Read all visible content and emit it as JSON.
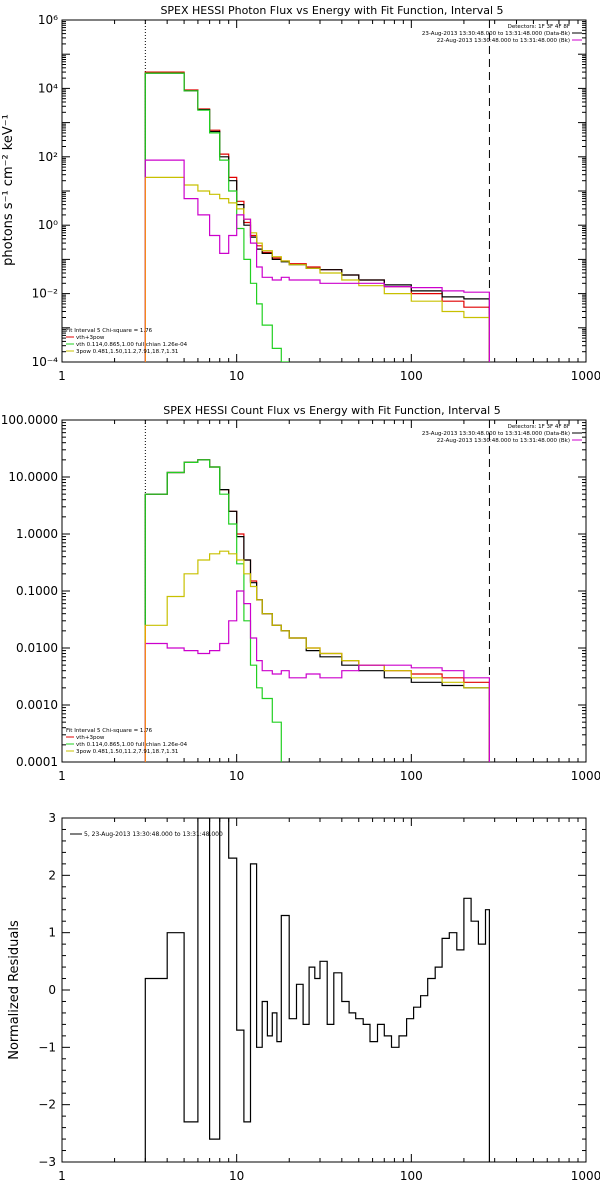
{
  "colors": {
    "black": "#000000",
    "red": "#e00000",
    "green": "#22d022",
    "yellow": "#c8c000",
    "magenta": "#cc00cc",
    "orange": "#ff9900"
  },
  "panels": [
    {
      "id": "photon",
      "title": "SPEX HESSI Photon Flux vs Energy with Fit Function, Interval 5",
      "ylabel": "photons s⁻¹ cm⁻² keV⁻¹",
      "ytick_labels": [
        "10⁻⁴",
        "10⁻²",
        "10⁰",
        "10²",
        "10⁴",
        "10⁶"
      ],
      "xtick_labels": [
        "1",
        "10",
        "100",
        "1000"
      ],
      "legend_right": [
        "Detectors: 1F 3F 4F 8F",
        "23-Aug-2013 13:30:48.000 to 13:31:48.000 (Data-Bk)",
        "22-Aug-2013 13:30:48.000 to 13:31:48.000 (Bk)"
      ],
      "legend_left": [
        "Fit Interval 5   Chi-square = 1.76",
        "vth+3pow",
        "vth 0.114,0.865,1.00  full chian 1.26e-04",
        "3pow 0.481,1.50,11.2,7.91,18.7,1.31"
      ]
    },
    {
      "id": "count",
      "title": "SPEX HESSI Count Flux vs Energy with Fit Function, Interval 5",
      "ylabel": "",
      "ytick_labels": [
        "0.0001",
        "0.0010",
        "0.0100",
        "0.1000",
        "1.0000",
        "10.0000",
        "100.0000"
      ],
      "xtick_labels": [
        "1",
        "10",
        "100",
        "1000"
      ],
      "legend_right": [
        "Detectors: 1F 3F 4F 8F",
        "23-Aug-2013 13:30:48.000 to 13:31:48.000 (Data-Bk)",
        "22-Aug-2013 13:30:48.000 to 13:31:48.000 (Bk)"
      ],
      "legend_left": [
        "Fit Interval 5   Chi-square = 1.76",
        "vth+3pow",
        "vth 0.114,0.865,1.00  full chian 1.26e-04",
        "3pow 0.481,1.50,11.2,7.91,18.7,1.31"
      ]
    },
    {
      "id": "resid",
      "title": "",
      "ylabel": "Normalized Residuals",
      "ytick_labels": [
        "−3",
        "−2",
        "−1",
        "0",
        "1",
        "2",
        "3"
      ],
      "xtick_labels": [
        "1",
        "10",
        "100",
        "1000"
      ],
      "legend_right": [],
      "legend_left": [
        "5, 23-Aug-2013 13:30:48.000 to 13:31:48.000"
      ]
    }
  ],
  "chart_data": [
    {
      "type": "line",
      "title": "SPEX HESSI Photon Flux vs Energy with Fit Function, Interval 5",
      "xlabel": "",
      "ylabel": "photons s⁻¹ cm⁻² keV⁻¹",
      "xscale": "log",
      "yscale": "log",
      "xlim": [
        1,
        1000
      ],
      "ylim": [
        0.0001,
        1000000
      ],
      "grid": false,
      "vlines": [
        {
          "x": 3,
          "style": "dotted"
        },
        {
          "x": 280,
          "style": "dashed"
        }
      ],
      "series": [
        {
          "name": "vth+3pow",
          "color": "red",
          "step": true,
          "x": [
            3,
            4,
            5,
            6,
            7,
            8,
            9,
            10,
            11,
            12,
            13,
            14,
            16,
            18,
            20,
            25,
            30,
            40,
            50,
            70,
            100,
            150,
            200,
            280
          ],
          "y": [
            30000,
            30000,
            9000,
            2500,
            600,
            120,
            25,
            5,
            1.2,
            0.5,
            0.25,
            0.16,
            0.11,
            0.09,
            0.075,
            0.06,
            0.05,
            0.035,
            0.025,
            0.016,
            0.01,
            0.006,
            0.004,
            0.002
          ]
        },
        {
          "name": "Data-Bk",
          "color": "black",
          "step": true,
          "x": [
            3,
            4,
            5,
            6,
            7,
            8,
            9,
            10,
            11,
            12,
            13,
            14,
            16,
            18,
            20,
            25,
            30,
            40,
            50,
            70,
            100,
            150,
            200,
            280
          ],
          "y": [
            28000,
            28000,
            8500,
            2400,
            550,
            100,
            20,
            4,
            1.0,
            0.45,
            0.2,
            0.15,
            0.1,
            0.085,
            0.07,
            0.055,
            0.05,
            0.035,
            0.025,
            0.018,
            0.012,
            0.008,
            0.007,
            0.006
          ]
        },
        {
          "name": "vth",
          "color": "green",
          "step": true,
          "x": [
            3,
            4,
            5,
            6,
            7,
            8,
            9,
            10,
            11,
            12,
            13,
            14,
            16,
            18,
            20
          ],
          "y": [
            28000,
            28000,
            8500,
            2300,
            500,
            80,
            10,
            0.8,
            0.1,
            0.02,
            0.005,
            0.0012,
            0.00025,
            0.0001,
            0.0001
          ]
        },
        {
          "name": "3pow",
          "color": "yellow",
          "step": true,
          "x": [
            3,
            4,
            5,
            6,
            7,
            8,
            9,
            10,
            11,
            12,
            13,
            14,
            16,
            18,
            20,
            25,
            30,
            40,
            50,
            70,
            100,
            150,
            200,
            280
          ],
          "y": [
            25,
            25,
            15,
            10,
            8,
            6,
            4.5,
            3,
            1.5,
            0.6,
            0.3,
            0.18,
            0.12,
            0.09,
            0.07,
            0.055,
            0.04,
            0.025,
            0.017,
            0.01,
            0.006,
            0.003,
            0.002,
            0.001
          ]
        },
        {
          "name": "Bk",
          "color": "magenta",
          "step": true,
          "x": [
            3,
            4,
            5,
            6,
            7,
            8,
            9,
            10,
            11,
            12,
            13,
            14,
            16,
            18,
            20,
            25,
            30,
            40,
            50,
            70,
            100,
            150,
            200,
            280
          ],
          "y": [
            80,
            80,
            6,
            2,
            0.5,
            0.15,
            0.5,
            2,
            1.5,
            0.3,
            0.06,
            0.03,
            0.025,
            0.03,
            0.025,
            0.025,
            0.02,
            0.02,
            0.02,
            0.016,
            0.015,
            0.012,
            0.011,
            0.01
          ]
        }
      ],
      "legend": [
        "Detectors: 1F 3F 4F 8F",
        "23-Aug-2013 13:30:48.000 to 13:31:48.000 (Data-Bk)",
        "22-Aug-2013 13:30:48.000 to 13:31:48.000 (Bk)"
      ]
    },
    {
      "type": "line",
      "title": "SPEX HESSI Count Flux vs Energy with Fit Function, Interval 5",
      "xlabel": "",
      "ylabel": "",
      "xscale": "log",
      "yscale": "log",
      "xlim": [
        1,
        1000
      ],
      "ylim": [
        0.0001,
        100
      ],
      "grid": false,
      "vlines": [
        {
          "x": 3,
          "style": "dotted"
        },
        {
          "x": 280,
          "style": "dashed"
        }
      ],
      "series": [
        {
          "name": "vth+3pow",
          "color": "red",
          "step": true,
          "x": [
            3,
            4,
            5,
            6,
            7,
            8,
            9,
            10,
            11,
            12,
            13,
            14,
            16,
            18,
            20,
            25,
            30,
            40,
            50,
            70,
            100,
            150,
            200,
            280
          ],
          "y": [
            5,
            12,
            18,
            20,
            15,
            6,
            2.5,
            1,
            0.35,
            0.15,
            0.07,
            0.04,
            0.025,
            0.02,
            0.015,
            0.01,
            0.008,
            0.006,
            0.005,
            0.004,
            0.0035,
            0.003,
            0.0025,
            0.002
          ]
        },
        {
          "name": "Data-Bk",
          "color": "black",
          "step": true,
          "x": [
            3,
            4,
            5,
            6,
            7,
            8,
            9,
            10,
            11,
            12,
            13,
            14,
            16,
            18,
            20,
            25,
            30,
            40,
            50,
            70,
            100,
            150,
            200,
            280
          ],
          "y": [
            5,
            12,
            18,
            20,
            15,
            6,
            2.5,
            0.9,
            0.35,
            0.14,
            0.07,
            0.04,
            0.025,
            0.02,
            0.015,
            0.009,
            0.007,
            0.005,
            0.004,
            0.003,
            0.0025,
            0.0022,
            0.002,
            0.0018
          ]
        },
        {
          "name": "vth",
          "color": "green",
          "step": true,
          "x": [
            3,
            4,
            5,
            6,
            7,
            8,
            9,
            10,
            11,
            12,
            13,
            14,
            16,
            18
          ],
          "y": [
            5,
            12,
            18,
            20,
            15,
            5,
            1.5,
            0.3,
            0.03,
            0.005,
            0.002,
            0.0013,
            0.0005,
            0.0001
          ]
        },
        {
          "name": "3pow",
          "color": "yellow",
          "step": true,
          "x": [
            3,
            4,
            5,
            6,
            7,
            8,
            9,
            10,
            11,
            12,
            13,
            14,
            16,
            18,
            20,
            25,
            30,
            40,
            50,
            70,
            100,
            150,
            200,
            280
          ],
          "y": [
            0.025,
            0.08,
            0.2,
            0.35,
            0.45,
            0.5,
            0.45,
            0.35,
            0.2,
            0.12,
            0.07,
            0.04,
            0.025,
            0.02,
            0.015,
            0.01,
            0.008,
            0.006,
            0.005,
            0.004,
            0.003,
            0.0025,
            0.002,
            0.0012
          ]
        },
        {
          "name": "Bk",
          "color": "magenta",
          "step": true,
          "x": [
            3,
            4,
            5,
            6,
            7,
            8,
            9,
            10,
            11,
            12,
            13,
            14,
            16,
            18,
            20,
            25,
            30,
            40,
            50,
            70,
            100,
            150,
            200,
            280
          ],
          "y": [
            0.012,
            0.01,
            0.009,
            0.008,
            0.009,
            0.012,
            0.03,
            0.1,
            0.06,
            0.015,
            0.006,
            0.004,
            0.0035,
            0.004,
            0.003,
            0.0035,
            0.003,
            0.004,
            0.005,
            0.005,
            0.0045,
            0.004,
            0.003,
            0.0022
          ]
        }
      ],
      "legend": [
        "Detectors: 1F 3F 4F 8F",
        "23-Aug-2013 13:30:48.000 to 13:31:48.000 (Data-Bk)",
        "22-Aug-2013 13:30:48.000 to 13:31:48.000 (Bk)"
      ]
    },
    {
      "type": "line",
      "title": "",
      "xlabel": "",
      "ylabel": "Normalized Residuals",
      "xscale": "log",
      "yscale": "linear",
      "xlim": [
        1,
        1000
      ],
      "ylim": [
        -3,
        3
      ],
      "grid": false,
      "series": [
        {
          "name": "5, 23-Aug-2013 13:30:48.000 to 13:31:48.000",
          "color": "black",
          "step": true,
          "x": [
            3,
            4,
            5,
            6,
            7,
            8,
            9,
            10,
            11,
            12,
            13,
            14,
            15,
            16,
            17,
            18,
            20,
            22,
            24,
            26,
            28,
            30,
            33,
            36,
            40,
            44,
            48,
            53,
            58,
            64,
            70,
            77,
            85,
            94,
            103,
            113,
            124,
            137,
            150,
            165,
            182,
            200,
            220,
            242,
            266,
            280
          ],
          "y": [
            0.2,
            1.0,
            -2.3,
            3.0,
            -2.6,
            3.0,
            2.3,
            -0.7,
            -2.3,
            2.2,
            -1.0,
            -0.2,
            -0.8,
            -0.4,
            -0.9,
            1.3,
            -0.5,
            0.1,
            -0.6,
            0.4,
            0.2,
            0.5,
            -0.6,
            0.3,
            -0.2,
            -0.4,
            -0.5,
            -0.6,
            -0.9,
            -0.6,
            -0.8,
            -1.0,
            -0.8,
            -0.5,
            -0.3,
            -0.1,
            0.2,
            0.4,
            0.9,
            1.0,
            0.7,
            1.6,
            1.2,
            0.8,
            1.4,
            1.4
          ]
        }
      ]
    }
  ]
}
